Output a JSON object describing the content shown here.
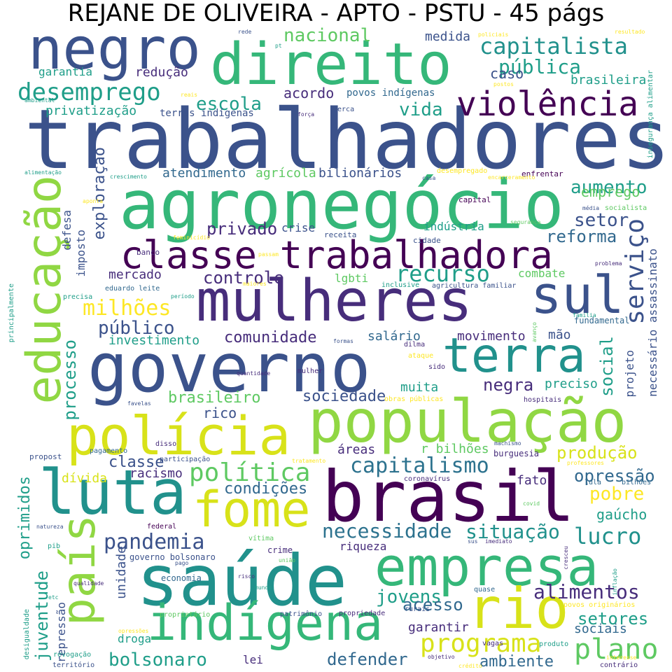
{
  "title": "REJANE DE OLIVEIRA - APTO - PSTU - 45 págs",
  "palette": {
    "navy": "#3b528b",
    "indigo": "#472d7b",
    "purple": "#440154",
    "teal": "#21918c",
    "steel": "#31688e",
    "cyan": "#2c728e",
    "green": "#35b779",
    "lime": "#90d743",
    "yellow": "#d8e219",
    "gold": "#fde725",
    "sea": "#1f9e89",
    "mint": "#5ec962"
  },
  "words": [
    {
      "text": "trabalhadores",
      "color": "navy"
    },
    {
      "text": "direito",
      "color": "green"
    },
    {
      "text": "negro",
      "color": "navy"
    },
    {
      "text": "agronegócio",
      "color": "green"
    },
    {
      "text": "mulheres",
      "color": "indigo"
    },
    {
      "text": "governo",
      "color": "navy"
    },
    {
      "text": "população",
      "color": "lime"
    },
    {
      "text": "polícia",
      "color": "yellow"
    },
    {
      "text": "brasil",
      "color": "purple"
    },
    {
      "text": "saúde",
      "color": "teal"
    },
    {
      "text": "luta",
      "color": "teal"
    },
    {
      "text": "educação",
      "color": "lime"
    },
    {
      "text": "empresa",
      "color": "green"
    },
    {
      "text": "indígena",
      "color": "green"
    },
    {
      "text": "fome",
      "color": "yellow"
    },
    {
      "text": "classe trabalhadora",
      "color": "purple"
    },
    {
      "text": "terra",
      "color": "teal"
    },
    {
      "text": "sul",
      "color": "navy"
    },
    {
      "text": "país",
      "color": "lime"
    },
    {
      "text": "rio",
      "color": "yellow"
    },
    {
      "text": "violência",
      "color": "purple"
    },
    {
      "text": "capitalista",
      "color": "teal"
    },
    {
      "text": "desemprego",
      "color": "sea"
    },
    {
      "text": "pública",
      "color": "sea"
    },
    {
      "text": "serviço",
      "color": "navy"
    },
    {
      "text": "plano",
      "color": "mint"
    },
    {
      "text": "programa",
      "color": "yellow"
    },
    {
      "text": "pandemia",
      "color": "navy"
    },
    {
      "text": "política",
      "color": "mint"
    },
    {
      "text": "recurso",
      "color": "sea"
    },
    {
      "text": "lucro",
      "color": "teal"
    },
    {
      "text": "milhões",
      "color": "gold"
    },
    {
      "text": "capitalismo",
      "color": "cyan"
    },
    {
      "text": "necessidade",
      "color": "cyan"
    },
    {
      "text": "situação",
      "color": "teal"
    },
    {
      "text": "alimentos",
      "color": "indigo"
    },
    {
      "text": "bolsonaro",
      "color": "sea"
    },
    {
      "text": "nacional",
      "color": "mint"
    },
    {
      "text": "vida",
      "color": "sea"
    },
    {
      "text": "escola",
      "color": "sea"
    },
    {
      "text": "setor",
      "color": "navy"
    },
    {
      "text": "reforma",
      "color": "steel"
    },
    {
      "text": "aumento",
      "color": "sea"
    },
    {
      "text": "produção",
      "color": "yellow"
    },
    {
      "text": "opressão",
      "color": "steel"
    },
    {
      "text": "pobre",
      "color": "gold"
    },
    {
      "text": "público",
      "color": "navy"
    },
    {
      "text": "controle",
      "color": "indigo"
    },
    {
      "text": "privado",
      "color": "indigo"
    },
    {
      "text": "jovens",
      "color": "sea"
    },
    {
      "text": "setores",
      "color": "sea"
    },
    {
      "text": "negra",
      "color": "indigo"
    },
    {
      "text": "social",
      "color": "sea"
    },
    {
      "text": "processo",
      "color": "sea"
    },
    {
      "text": "juventude",
      "color": "sea"
    },
    {
      "text": "oprimidos",
      "color": "sea"
    },
    {
      "text": "exploração",
      "color": "navy"
    },
    {
      "text": "classe",
      "color": "navy"
    },
    {
      "text": "comunidade",
      "color": "indigo"
    },
    {
      "text": "defender",
      "color": "steel"
    },
    {
      "text": "acesso",
      "color": "steel"
    },
    {
      "text": "ambiente",
      "color": "steel"
    },
    {
      "text": "brasileiro",
      "color": "mint"
    },
    {
      "text": "sociedade",
      "color": "navy"
    },
    {
      "text": "condições",
      "color": "steel"
    },
    {
      "text": "gaúcho",
      "color": "sea"
    },
    {
      "text": "emprego",
      "color": "mint"
    },
    {
      "text": "caso",
      "color": "navy"
    },
    {
      "text": "acordo",
      "color": "indigo"
    },
    {
      "text": "brasileira",
      "color": "sea"
    },
    {
      "text": "medida",
      "color": "navy"
    },
    {
      "text": "redução",
      "color": "indigo"
    },
    {
      "text": "garantia",
      "color": "sea"
    },
    {
      "text": "privatização",
      "color": "sea"
    },
    {
      "text": "atendimento",
      "color": "steel"
    },
    {
      "text": "agrícola",
      "color": "mint"
    },
    {
      "text": "bilionários",
      "color": "navy"
    },
    {
      "text": "povos indígenas",
      "color": "steel"
    },
    {
      "text": "terras indígenas",
      "color": "navy"
    },
    {
      "text": "indústria",
      "color": "sea"
    },
    {
      "text": "crise",
      "color": "navy"
    },
    {
      "text": "imposto",
      "color": "navy"
    },
    {
      "text": "defesa",
      "color": "navy"
    },
    {
      "text": "mercado",
      "color": "indigo"
    },
    {
      "text": "investimento",
      "color": "sea"
    },
    {
      "text": "salário",
      "color": "steel"
    },
    {
      "text": "movimento",
      "color": "indigo"
    },
    {
      "text": "mão",
      "color": "navy"
    },
    {
      "text": "muita",
      "color": "sea"
    },
    {
      "text": "preciso",
      "color": "sea"
    },
    {
      "text": "projeto",
      "color": "navy"
    },
    {
      "text": "necessário assassinato",
      "color": "navy"
    },
    {
      "text": "rico",
      "color": "navy"
    },
    {
      "text": "áreas",
      "color": "indigo"
    },
    {
      "text": "r bilhões",
      "color": "mint"
    },
    {
      "text": "dívida",
      "color": "yellow"
    },
    {
      "text": "racismo",
      "color": "indigo"
    },
    {
      "text": "fato",
      "color": "indigo"
    },
    {
      "text": "unidade",
      "color": "navy"
    },
    {
      "text": "riqueza",
      "color": "indigo"
    },
    {
      "text": "garantir",
      "color": "indigo"
    },
    {
      "text": "sociais",
      "color": "steel"
    },
    {
      "text": "droga",
      "color": "sea"
    },
    {
      "text": "lei",
      "color": "indigo"
    },
    {
      "text": "repressão",
      "color": "navy"
    },
    {
      "text": "combate",
      "color": "mint"
    },
    {
      "text": "lgbti",
      "color": "mint"
    },
    {
      "text": "fundamental",
      "color": "steel"
    },
    {
      "text": "capital",
      "color": "purple"
    },
    {
      "text": "enfrentar",
      "color": "purple"
    },
    {
      "text": "banco",
      "color": "indigo"
    },
    {
      "text": "receita",
      "color": "navy"
    },
    {
      "text": "cidade",
      "color": "navy"
    },
    {
      "text": "burguesia",
      "color": "indigo"
    },
    {
      "text": "crime",
      "color": "indigo"
    },
    {
      "text": "economia",
      "color": "steel"
    },
    {
      "text": "governo bolsonaro",
      "color": "navy"
    },
    {
      "text": "federal",
      "color": "purple"
    },
    {
      "text": "propost",
      "color": "navy"
    },
    {
      "text": "participação",
      "color": "navy"
    },
    {
      "text": "disso",
      "color": "indigo"
    },
    {
      "text": "pagamento",
      "color": "steel"
    },
    {
      "text": "rede",
      "color": "navy"
    },
    {
      "text": "pt",
      "color": "sea"
    },
    {
      "text": "resultado",
      "color": "gold"
    },
    {
      "text": "policiais",
      "color": "gold"
    },
    {
      "text": "reais",
      "color": "gold"
    },
    {
      "text": "postos",
      "color": "gold"
    },
    {
      "text": "ambiental",
      "color": "sea"
    },
    {
      "text": "força",
      "color": "indigo"
    },
    {
      "text": "cerca",
      "color": "navy"
    },
    {
      "text": "insegurança alimentar",
      "color": "sea"
    },
    {
      "text": "alimentação",
      "color": "sea"
    },
    {
      "text": "crescimento",
      "color": "sea"
    },
    {
      "text": "desempregado",
      "color": "gold"
    },
    {
      "text": "encarceramento",
      "color": "gold"
    },
    {
      "text": "casa",
      "color": "navy"
    },
    {
      "text": "aponta",
      "color": "gold"
    },
    {
      "text": "média",
      "color": "navy"
    },
    {
      "text": "socialista",
      "color": "mint"
    },
    {
      "text": "segurança",
      "color": "mint"
    },
    {
      "text": "feminicídio",
      "color": "gold"
    },
    {
      "text": "passam",
      "color": "gold"
    },
    {
      "text": "problema",
      "color": "indigo"
    },
    {
      "text": "maiores",
      "color": "gold"
    },
    {
      "text": "inclusive",
      "color": "sea"
    },
    {
      "text": "agricultura familiar",
      "color": "navy"
    },
    {
      "text": "eduardo leite",
      "color": "steel"
    },
    {
      "text": "precisa",
      "color": "sea"
    },
    {
      "text": "período",
      "color": "sea"
    },
    {
      "text": "principalmente",
      "color": "sea"
    },
    {
      "text": "família",
      "color": "sea"
    },
    {
      "text": "avanço",
      "color": "mint"
    },
    {
      "text": "formas",
      "color": "navy"
    },
    {
      "text": "dilma",
      "color": "indigo"
    },
    {
      "text": "ataque",
      "color": "gold"
    },
    {
      "text": "sido",
      "color": "indigo"
    },
    {
      "text": "mulher",
      "color": "indigo"
    },
    {
      "text": "quantidade",
      "color": "indigo"
    },
    {
      "text": "obras públicas",
      "color": "gold"
    },
    {
      "text": "hospitais",
      "color": "indigo"
    },
    {
      "text": "favelas",
      "color": "navy"
    },
    {
      "text": "machismo",
      "color": "navy"
    },
    {
      "text": "professores",
      "color": "gold"
    },
    {
      "text": "tratamento",
      "color": "gold"
    },
    {
      "text": "coronavírus",
      "color": "indigo"
    },
    {
      "text": "lula",
      "color": "steel"
    },
    {
      "text": "bilhões",
      "color": "steel"
    },
    {
      "text": "covid",
      "color": "mint"
    },
    {
      "text": "natureza",
      "color": "navy"
    },
    {
      "text": "vítima",
      "color": "mint"
    },
    {
      "text": "sus",
      "color": "navy"
    },
    {
      "text": "imediato",
      "color": "indigo"
    },
    {
      "text": "pib",
      "color": "sea"
    },
    {
      "text": "pago",
      "color": "navy"
    },
    {
      "text": "união",
      "color": "mint"
    },
    {
      "text": "cresceu",
      "color": "indigo"
    },
    {
      "text": "inflação",
      "color": "sea"
    },
    {
      "text": "qualidade",
      "color": "indigo"
    },
    {
      "text": "risco",
      "color": "indigo"
    },
    {
      "text": "mundo",
      "color": "sea"
    },
    {
      "text": "quase",
      "color": "steel"
    },
    {
      "text": "etc",
      "color": "sea"
    },
    {
      "text": "povos originários",
      "color": "gold"
    },
    {
      "text": "desigualdade",
      "color": "sea"
    },
    {
      "text": "opressões",
      "color": "gold"
    },
    {
      "text": "proprietário",
      "color": "mint"
    },
    {
      "text": "patrimônio",
      "color": "navy"
    },
    {
      "text": "propriedade",
      "color": "indigo"
    },
    {
      "text": "rurais",
      "color": "navy"
    },
    {
      "text": "vagas",
      "color": "indigo"
    },
    {
      "text": "revogação",
      "color": "sea"
    },
    {
      "text": "território",
      "color": "navy"
    },
    {
      "text": "objetivo",
      "color": "indigo"
    },
    {
      "text": "crédito",
      "color": "gold"
    },
    {
      "text": "interesse",
      "color": "gold"
    },
    {
      "text": "produto",
      "color": "sea"
    },
    {
      "text": "contrário",
      "color": "indigo"
    }
  ]
}
